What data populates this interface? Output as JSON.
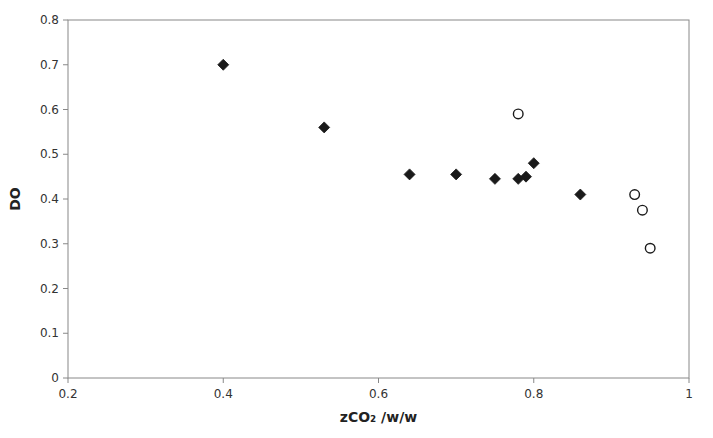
{
  "chart_data": {
    "type": "scatter",
    "xlabel": "zCO₂ /w/w",
    "ylabel": "DO",
    "series": [
      {
        "marker": "diamond",
        "color": "#1a1a1a",
        "x": [
          0.4,
          0.53,
          0.64,
          0.7,
          0.75,
          0.78,
          0.79,
          0.8,
          0.86
        ],
        "values": [
          0.7,
          0.56,
          0.455,
          0.455,
          0.445,
          0.445,
          0.45,
          0.48,
          0.41
        ]
      },
      {
        "marker": "open_circle",
        "color": "#1a1a1a",
        "x": [
          0.78,
          0.93,
          0.94,
          0.95
        ],
        "values": [
          0.59,
          0.41,
          0.375,
          0.29
        ]
      }
    ],
    "xlim": [
      0.2,
      1
    ],
    "ylim": [
      0,
      0.8
    ],
    "xticks": [
      0.2,
      0.4,
      0.6,
      0.8,
      1
    ],
    "yticks": [
      0,
      0.1,
      0.2,
      0.3,
      0.4,
      0.5,
      0.6,
      0.7,
      0.8
    ],
    "grid": false
  }
}
